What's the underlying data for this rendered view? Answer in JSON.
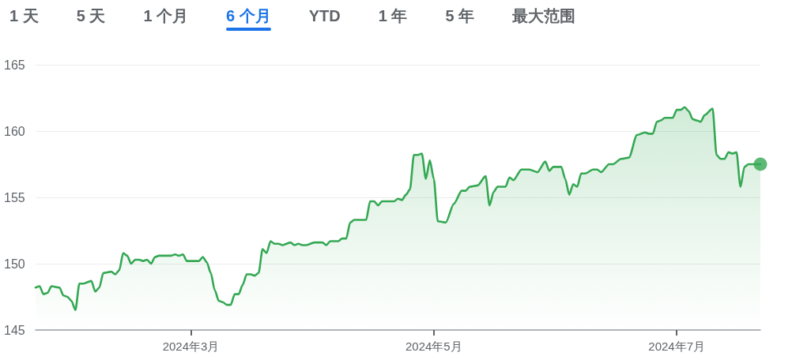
{
  "chart_data": {
    "type": "area",
    "annotations": [
      "1 天",
      "5 天",
      "1 个月",
      "6 个月",
      "YTD",
      "1 年",
      "5 年",
      "最大范围"
    ],
    "x": [
      "2024-01-22",
      "2024-01-23",
      "2024-01-24",
      "2024-01-25",
      "2024-01-26",
      "2024-01-28",
      "2024-01-29",
      "2024-01-30",
      "2024-01-31",
      "2024-02-01",
      "2024-02-02",
      "2024-02-03",
      "2024-02-05",
      "2024-02-06",
      "2024-02-07",
      "2024-02-08",
      "2024-02-10",
      "2024-02-11",
      "2024-02-12",
      "2024-02-13",
      "2024-02-14",
      "2024-02-15",
      "2024-02-16",
      "2024-02-17",
      "2024-02-18",
      "2024-02-19",
      "2024-02-20",
      "2024-02-21",
      "2024-02-22",
      "2024-02-25",
      "2024-02-26",
      "2024-02-27",
      "2024-02-28",
      "2024-02-29",
      "2024-03-03",
      "2024-03-04",
      "2024-03-05",
      "2024-03-06",
      "2024-03-07",
      "2024-03-08",
      "2024-03-09",
      "2024-03-10",
      "2024-03-11",
      "2024-03-12",
      "2024-03-13",
      "2024-03-14",
      "2024-03-15",
      "2024-03-16",
      "2024-03-17",
      "2024-03-18",
      "2024-03-19",
      "2024-03-20",
      "2024-03-21",
      "2024-03-22",
      "2024-03-23",
      "2024-03-24",
      "2024-03-26",
      "2024-03-27",
      "2024-03-28",
      "2024-03-29",
      "2024-03-30",
      "2024-04-01",
      "2024-04-03",
      "2024-04-04",
      "2024-04-05",
      "2024-04-07",
      "2024-04-08",
      "2024-04-09",
      "2024-04-10",
      "2024-04-11",
      "2024-04-14",
      "2024-04-15",
      "2024-04-16",
      "2024-04-17",
      "2024-04-18",
      "2024-04-21",
      "2024-04-22",
      "2024-04-23",
      "2024-04-24",
      "2024-04-25",
      "2024-04-26",
      "2024-04-27",
      "2024-04-28",
      "2024-04-29",
      "2024-04-30",
      "2024-05-01",
      "2024-05-02",
      "2024-05-04",
      "2024-05-06",
      "2024-05-08",
      "2024-05-09",
      "2024-05-10",
      "2024-05-12",
      "2024-05-14",
      "2024-05-15",
      "2024-05-16",
      "2024-05-17",
      "2024-05-19",
      "2024-05-20",
      "2024-05-21",
      "2024-05-23",
      "2024-05-25",
      "2024-05-27",
      "2024-05-29",
      "2024-05-30",
      "2024-05-31",
      "2024-06-02",
      "2024-06-03",
      "2024-06-04",
      "2024-06-05",
      "2024-06-06",
      "2024-06-07",
      "2024-06-08",
      "2024-06-10",
      "2024-06-11",
      "2024-06-12",
      "2024-06-14",
      "2024-06-15",
      "2024-06-17",
      "2024-06-19",
      "2024-06-21",
      "2024-06-23",
      "2024-06-24",
      "2024-06-25",
      "2024-06-26",
      "2024-06-27",
      "2024-06-28",
      "2024-06-30",
      "2024-07-01",
      "2024-07-02",
      "2024-07-03",
      "2024-07-04",
      "2024-07-05",
      "2024-07-06",
      "2024-07-07",
      "2024-07-08",
      "2024-07-10",
      "2024-07-11",
      "2024-07-12",
      "2024-07-13",
      "2024-07-14",
      "2024-07-15",
      "2024-07-16",
      "2024-07-17",
      "2024-07-18",
      "2024-07-19",
      "2024-07-22"
    ],
    "series": [
      {
        "color": "#34a853",
        "values": [
          148.2,
          148.3,
          147.7,
          147.8,
          148.3,
          148.2,
          147.6,
          147.5,
          147.2,
          146.5,
          148.5,
          148.5,
          148.7,
          147.9,
          148.2,
          149.3,
          149.4,
          149.2,
          149.5,
          150.8,
          150.6,
          150.0,
          150.3,
          150.3,
          150.2,
          150.3,
          150.0,
          150.5,
          150.6,
          150.6,
          150.7,
          150.6,
          150.7,
          150.2,
          150.2,
          150.5,
          150.1,
          149.3,
          148.0,
          147.2,
          147.1,
          146.9,
          146.9,
          147.7,
          147.7,
          148.4,
          149.2,
          149.2,
          149.1,
          149.3,
          151.1,
          150.8,
          151.7,
          151.5,
          151.5,
          151.4,
          151.6,
          151.4,
          151.5,
          151.4,
          151.4,
          151.6,
          151.6,
          151.4,
          151.7,
          151.7,
          151.9,
          151.9,
          153.1,
          153.3,
          153.3,
          154.7,
          154.7,
          154.4,
          154.7,
          154.7,
          154.9,
          154.8,
          155.2,
          155.6,
          158.2,
          158.2,
          158.3,
          156.4,
          157.8,
          156.4,
          153.2,
          153.1,
          154.5,
          155.5,
          155.5,
          155.8,
          155.9,
          156.6,
          154.4,
          155.4,
          155.8,
          155.8,
          156.5,
          156.3,
          157.1,
          157.1,
          156.9,
          157.7,
          157.0,
          157.3,
          157.3,
          156.4,
          155.2,
          156.0,
          155.8,
          156.8,
          156.8,
          157.1,
          157.1,
          156.9,
          157.5,
          157.5,
          157.9,
          158.0,
          159.7,
          159.9,
          159.8,
          159.8,
          160.7,
          160.8,
          161.0,
          161.0,
          161.6,
          161.6,
          161.8,
          161.5,
          160.9,
          160.8,
          160.7,
          161.2,
          161.7,
          158.2,
          157.9,
          157.9,
          158.4,
          158.3,
          158.4,
          155.8,
          157.3,
          157.5,
          157.5
        ]
      },
      {
        "type": "scatter",
        "color": "#34a853",
        "x": [
          "2024-07-22"
        ],
        "values": [
          157.5
        ]
      }
    ],
    "xlim": [
      "2024-01-22",
      "2024-07-22"
    ],
    "xticks": [
      {
        "value": "2024-03-01",
        "label": "2024年3月"
      },
      {
        "value": "2024-05-01",
        "label": "2024年5月"
      },
      {
        "value": "2024-07-01",
        "label": "2024年7月"
      }
    ],
    "ylim": [
      145,
      165
    ],
    "yticks": [
      145,
      150,
      155,
      160,
      165
    ],
    "grid": "y"
  }
}
